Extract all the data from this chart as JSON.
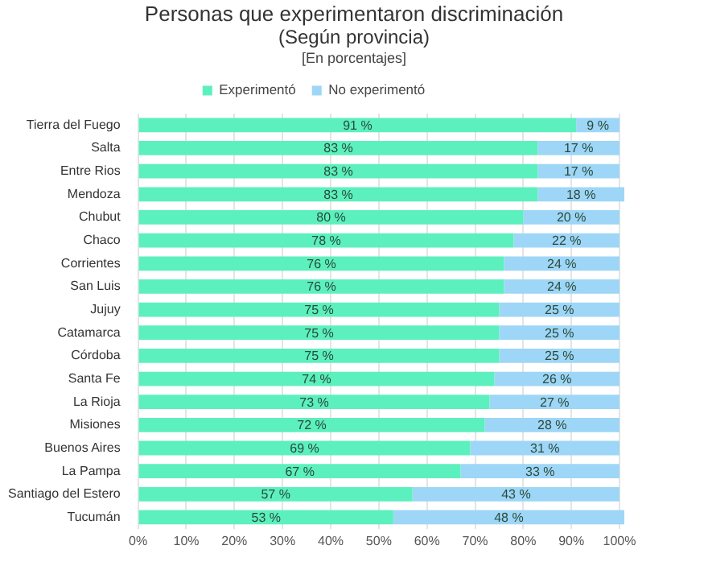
{
  "chart_data": {
    "type": "bar",
    "orientation": "horizontal",
    "stacked": true,
    "title": "Personas que experimentaron discriminación",
    "subtitle": "(Según provincia)",
    "annotations": [
      "[En porcentajes]"
    ],
    "categories": [
      "Tierra del Fuego",
      "Salta",
      "Entre Rios",
      "Mendoza",
      "Chubut",
      "Chaco",
      "Corrientes",
      "San Luis",
      "Jujuy",
      "Catamarca",
      "Córdoba",
      "Santa Fe",
      "La Rioja",
      "Misiones",
      "Buenos Aires",
      "La Pampa",
      "Santiago del Estero",
      "Tucumán"
    ],
    "series": [
      {
        "name": "Experimentó",
        "color": "#5cf0be",
        "values": [
          91,
          83,
          83,
          83,
          80,
          78,
          76,
          76,
          75,
          75,
          75,
          74,
          73,
          72,
          69,
          67,
          57,
          53
        ],
        "value_labels": [
          "91 %",
          "83 %",
          "83 %",
          "83 %",
          "80 %",
          "78 %",
          "76 %",
          "76 %",
          "75 %",
          "75 %",
          "75 %",
          "74 %",
          "73 %",
          "72 %",
          "69 %",
          "67 %",
          "57 %",
          "53 %"
        ]
      },
      {
        "name": "No experimentó",
        "color": "#9ed6f7",
        "values": [
          9,
          17,
          17,
          18,
          20,
          22,
          24,
          24,
          25,
          25,
          25,
          26,
          27,
          28,
          31,
          33,
          43,
          48
        ],
        "value_labels": [
          "9 %",
          "17 %",
          "17 %",
          "18 %",
          "20 %",
          "22 %",
          "24 %",
          "24 %",
          "25 %",
          "25 %",
          "25 %",
          "26 %",
          "27 %",
          "28 %",
          "31 %",
          "33 %",
          "43 %",
          "48 %"
        ]
      }
    ],
    "xlim": [
      0,
      101
    ],
    "xticks": [
      {
        "value": 0,
        "label": "0%"
      },
      {
        "value": 10,
        "label": "10%"
      },
      {
        "value": 20,
        "label": "20%"
      },
      {
        "value": 30,
        "label": "30%"
      },
      {
        "value": 40,
        "label": "40%"
      },
      {
        "value": 50,
        "label": "50%"
      },
      {
        "value": 60,
        "label": "60%"
      },
      {
        "value": 70,
        "label": "70%"
      },
      {
        "value": 80,
        "label": "80%"
      },
      {
        "value": 90,
        "label": "90%"
      },
      {
        "value": 100,
        "label": "100%"
      }
    ],
    "grid": "x",
    "legend": "top"
  }
}
